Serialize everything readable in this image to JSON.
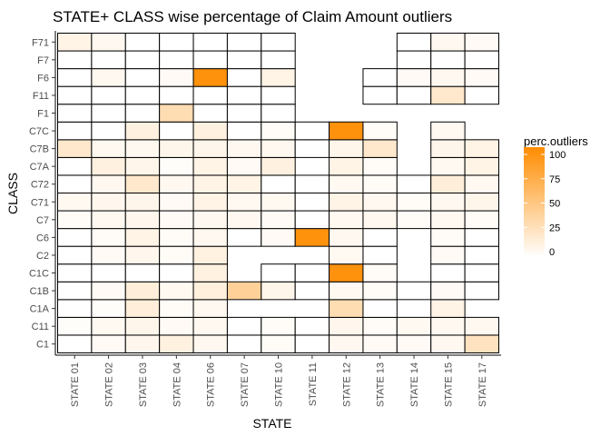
{
  "chart_data": {
    "type": "heatmap",
    "title": "STATE+ CLASS wise percentage of Claim Amount outliers",
    "xlabel": "STATE",
    "ylabel": "CLASS",
    "x_categories": [
      "STATE 01",
      "STATE 02",
      "STATE 03",
      "STATE 04",
      "STATE 06",
      "STATE 07",
      "STATE 10",
      "STATE 11",
      "STATE 12",
      "STATE 13",
      "STATE 14",
      "STATE 15",
      "STATE 17"
    ],
    "y_categories": [
      "C1",
      "C11",
      "C1A",
      "C1B",
      "C1C",
      "C2",
      "C6",
      "C7",
      "C71",
      "C72",
      "C7A",
      "C7B",
      "C7C",
      "F1",
      "F11",
      "F6",
      "F7",
      "F71"
    ],
    "values": [
      [
        0,
        4,
        7,
        12,
        6,
        0,
        3,
        0,
        6,
        4,
        4,
        6,
        25
      ],
      [
        2,
        5,
        8,
        4,
        6,
        0,
        3,
        0,
        7,
        3,
        5,
        6,
        6
      ],
      [
        0,
        2,
        15,
        3,
        6,
        null,
        null,
        null,
        30,
        0,
        null,
        10,
        null
      ],
      [
        0,
        4,
        15,
        5,
        13,
        40,
        8,
        0,
        5,
        3,
        0,
        4,
        0
      ],
      [
        0,
        0,
        0,
        0,
        12,
        null,
        0,
        0,
        95,
        3,
        null,
        0,
        0
      ],
      [
        0,
        4,
        7,
        3,
        12,
        null,
        null,
        null,
        5,
        0,
        null,
        4,
        0
      ],
      [
        0,
        3,
        10,
        3,
        6,
        0,
        4,
        95,
        6,
        0,
        null,
        3,
        0
      ],
      [
        3,
        6,
        7,
        4,
        6,
        6,
        4,
        0,
        5,
        6,
        3,
        5,
        3
      ],
      [
        5,
        7,
        8,
        4,
        10,
        5,
        5,
        0,
        10,
        6,
        3,
        6,
        8
      ],
      [
        0,
        6,
        20,
        6,
        10,
        10,
        0,
        0,
        5,
        3,
        0,
        15,
        5
      ],
      [
        0,
        12,
        8,
        2,
        10,
        4,
        12,
        null,
        10,
        3,
        null,
        5,
        10
      ],
      [
        20,
        6,
        6,
        8,
        8,
        6,
        6,
        0,
        8,
        20,
        null,
        8,
        10
      ],
      [
        0,
        0,
        12,
        0,
        12,
        0,
        3,
        0,
        95,
        3,
        null,
        5,
        null
      ],
      [
        0,
        0,
        0,
        30,
        0,
        0,
        0,
        null,
        null,
        null,
        null,
        null,
        null
      ],
      [
        0,
        0,
        0,
        0,
        0,
        0,
        0,
        null,
        null,
        0,
        0,
        20,
        0
      ],
      [
        0,
        6,
        0,
        4,
        95,
        0,
        10,
        null,
        null,
        0,
        4,
        6,
        4
      ],
      [
        0,
        0,
        0,
        0,
        0,
        0,
        0,
        null,
        null,
        null,
        0,
        0,
        0
      ],
      [
        10,
        6,
        0,
        0,
        0,
        0,
        0,
        null,
        null,
        null,
        0,
        6,
        4
      ]
    ],
    "legend": {
      "title": "perc.outliers",
      "ticks": [
        100,
        75,
        50,
        25,
        0
      ],
      "range": [
        0,
        100
      ],
      "position": "right"
    },
    "colors": {
      "low": "#ffffff",
      "high": "#ff8c00"
    },
    "grid": false
  }
}
